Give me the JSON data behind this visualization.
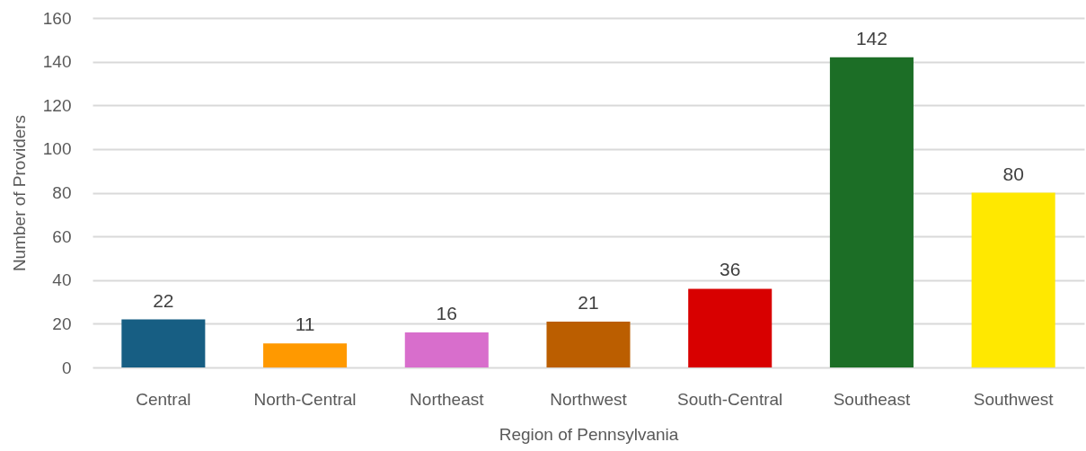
{
  "chart_data": {
    "type": "bar",
    "xlabel": "Region of Pennsylvania",
    "ylabel": "Number of Providers",
    "categories": [
      "Central",
      "North-Central",
      "Northeast",
      "Northwest",
      "South-Central",
      "Southeast",
      "Southwest"
    ],
    "values": [
      22,
      11,
      16,
      21,
      36,
      142,
      80
    ],
    "colors": [
      "#175e83",
      "#ff9900",
      "#d86ecc",
      "#bb5e00",
      "#d80000",
      "#1c6e26",
      "#ffe800"
    ],
    "ylim": [
      0,
      160
    ],
    "yticks": [
      0,
      20,
      40,
      60,
      80,
      100,
      120,
      140,
      160
    ],
    "grid": "y",
    "data_labels": true,
    "legend": false
  }
}
